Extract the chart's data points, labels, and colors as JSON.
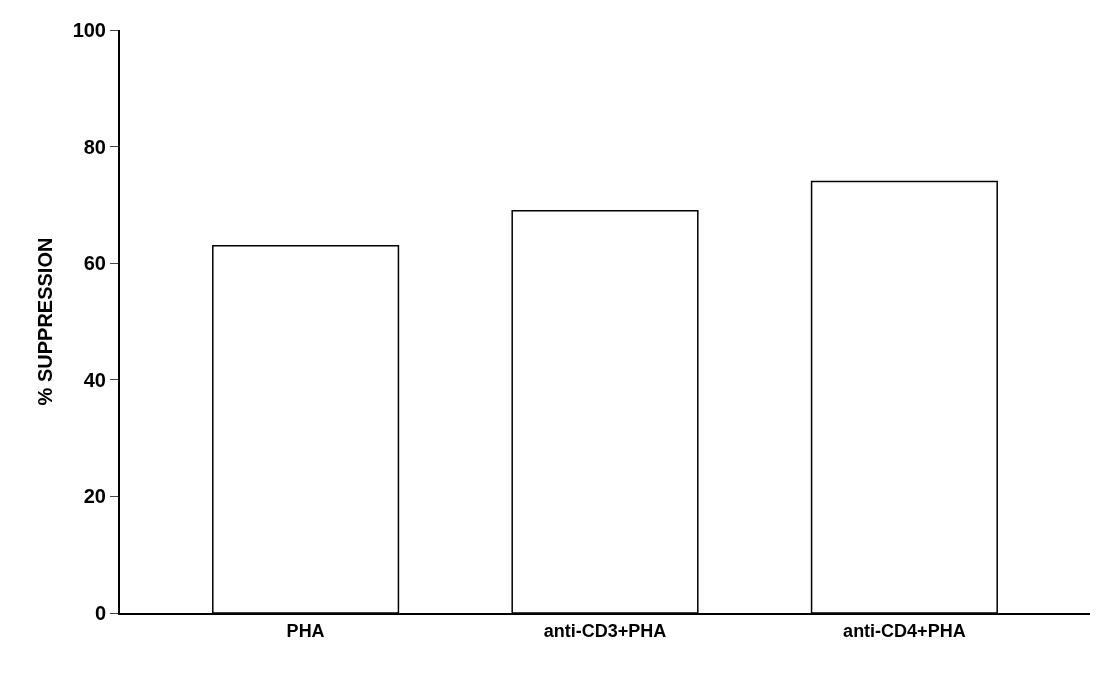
{
  "chart_data": {
    "type": "bar",
    "ylabel": "% SUPPRESSION",
    "categories": [
      "PHA",
      "anti-CD3+PHA",
      "anti-CD4+PHA"
    ],
    "values": [
      63,
      69,
      74
    ],
    "color": "#ffffff",
    "ylim": [
      0,
      100
    ],
    "yticks": [
      0,
      20,
      40,
      60,
      80,
      100
    ]
  }
}
